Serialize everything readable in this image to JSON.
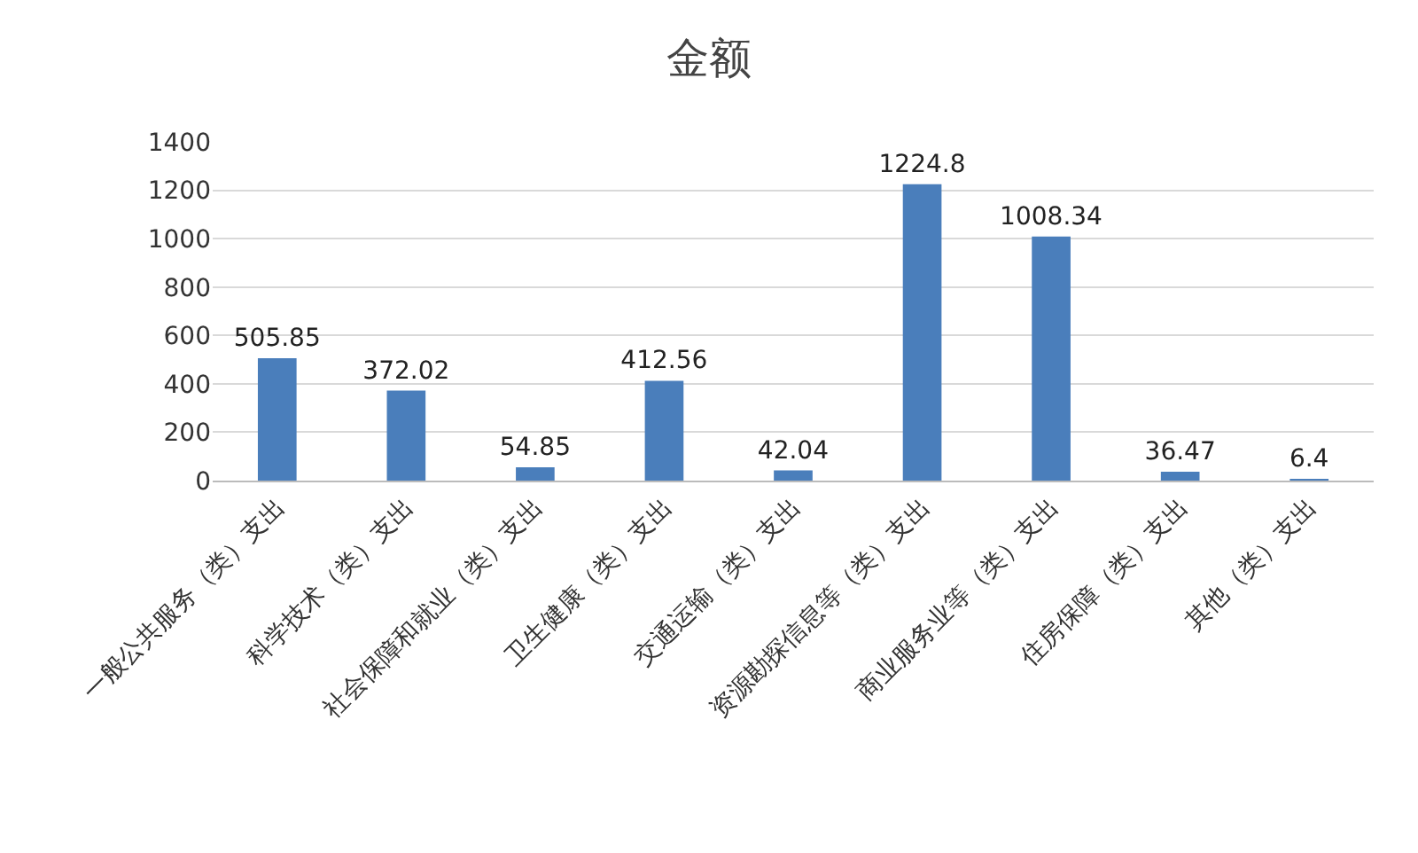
{
  "chart_data": {
    "type": "bar",
    "title": "金额",
    "categories": [
      "一般公共服务（类）支出",
      "科学技术（类）支出",
      "社会保障和就业（类）支出",
      "卫生健康（类）支出",
      "交通运输（类）支出",
      "资源勘探信息等（类）支出",
      "商业服务业等（类）支出",
      "住房保障（类）支出",
      "其他（类）支出"
    ],
    "values": [
      505.85,
      372.02,
      54.85,
      412.56,
      42.04,
      1224.8,
      1008.34,
      36.47,
      6.4
    ],
    "color": "#4a7ebb",
    "ylim": [
      0,
      1400
    ],
    "yticks": [
      0,
      200,
      400,
      600,
      800,
      1000,
      1200,
      1400
    ],
    "grid": "y",
    "data_labels": true
  }
}
